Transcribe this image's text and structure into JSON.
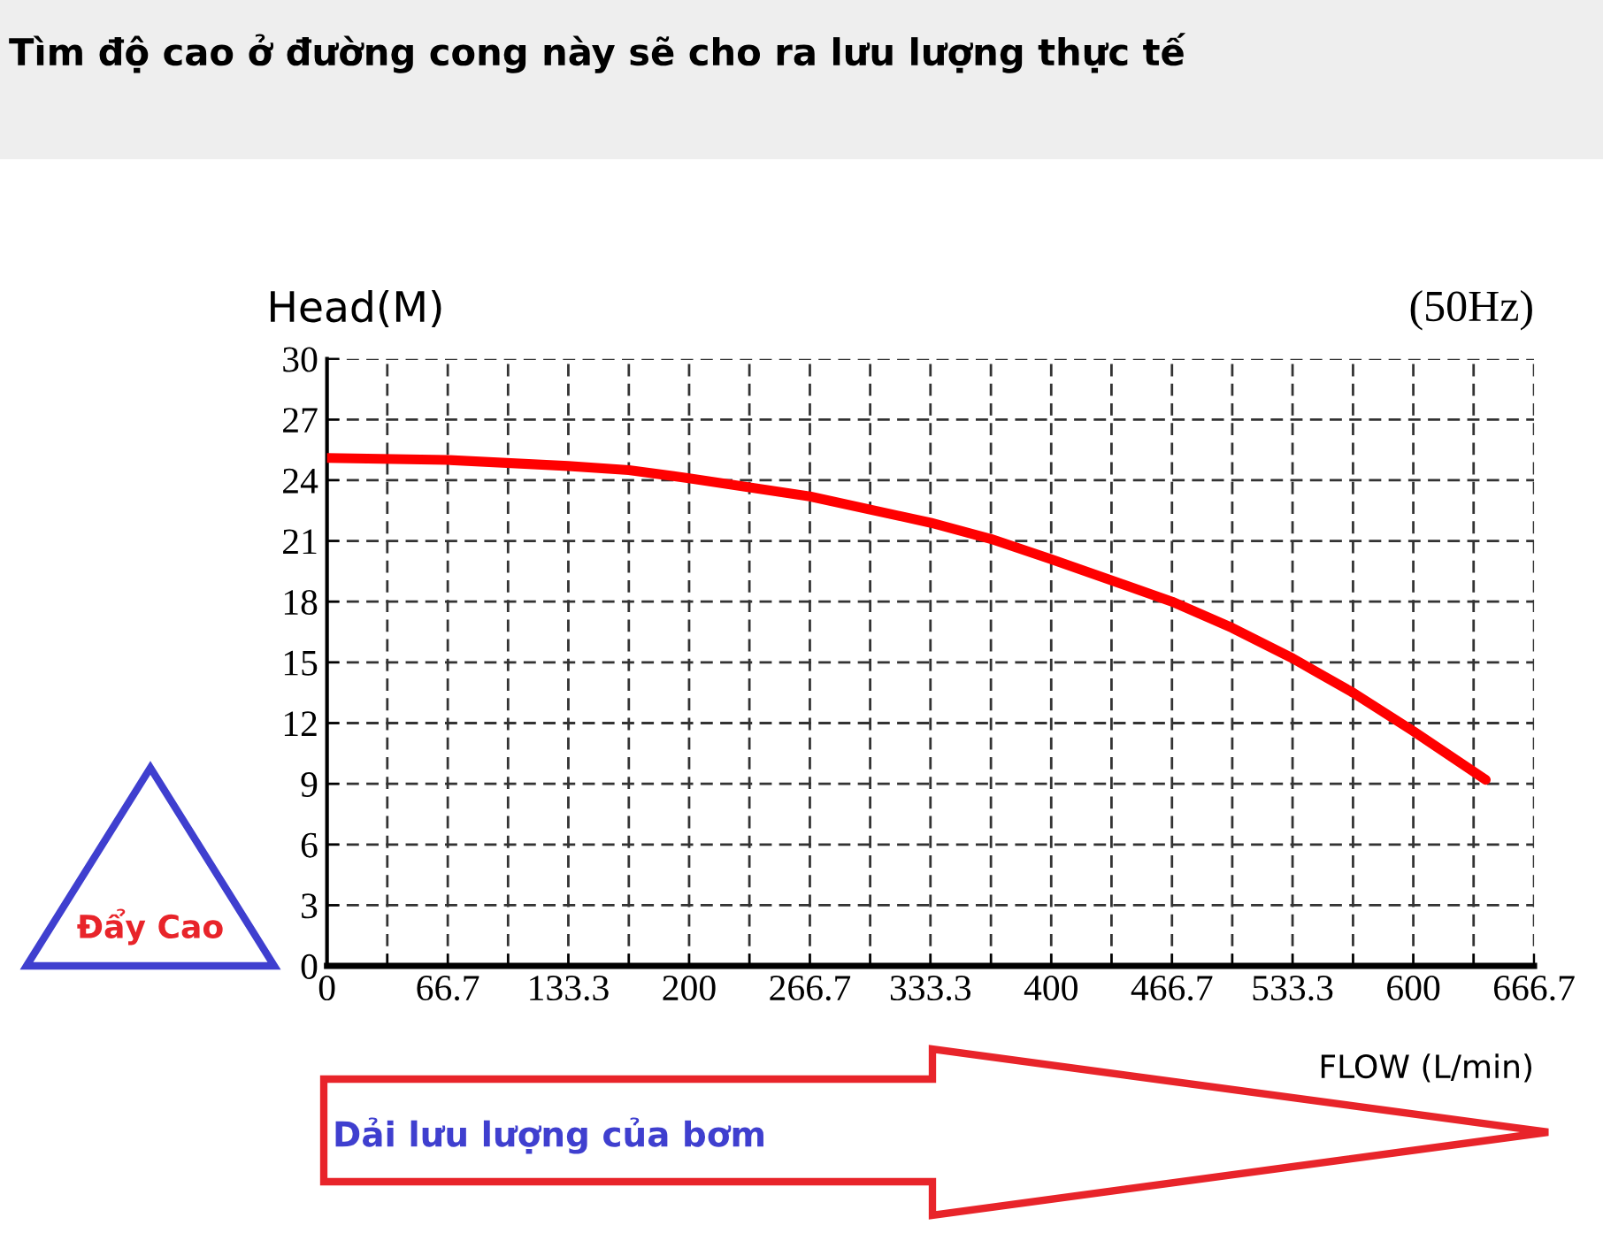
{
  "chart_data": {
    "type": "line",
    "title": "Tìm độ cao ở đường cong này sẽ cho ra lưu lượng thực tế",
    "xlabel": "FLOW (L/min)",
    "ylabel": "Head(M)",
    "annotations": [
      "(50Hz)",
      "Đẩy Cao",
      "Dải lưu lượng của bơm"
    ],
    "x": [
      0,
      66.7,
      133.3,
      166.7,
      200,
      266.7,
      333.3,
      366.7,
      400,
      466.7,
      500,
      533.3,
      566.7,
      600,
      640
    ],
    "series": [
      {
        "color": "#ff0000",
        "values": [
          25.1,
          25.0,
          24.7,
          24.5,
          24.1,
          23.2,
          21.9,
          21.1,
          20.1,
          18.0,
          16.7,
          15.2,
          13.5,
          11.6,
          9.2
        ]
      }
    ],
    "xlim": [
      0,
      666.7
    ],
    "ylim": [
      0,
      30
    ],
    "xticks": [
      0,
      {
        "value": 33.3,
        "label": null
      },
      66.7,
      {
        "value": 100,
        "label": null
      },
      133.3,
      {
        "value": 166.7,
        "label": null
      },
      200,
      {
        "value": 233.3,
        "label": null
      },
      266.7,
      {
        "value": 300,
        "label": null
      },
      333.3,
      {
        "value": 366.7,
        "label": null
      },
      400,
      {
        "value": 433.3,
        "label": null
      },
      466.7,
      {
        "value": 500,
        "label": null
      },
      533.3,
      {
        "value": 566.7,
        "label": null
      },
      600,
      {
        "value": 633.3,
        "label": null
      },
      666.7
    ],
    "yticks": [
      0,
      3,
      6,
      9,
      12,
      15,
      18,
      21,
      24,
      27,
      30
    ],
    "grid": true,
    "marker": "none",
    "line_style": "solid",
    "legend": false
  }
}
